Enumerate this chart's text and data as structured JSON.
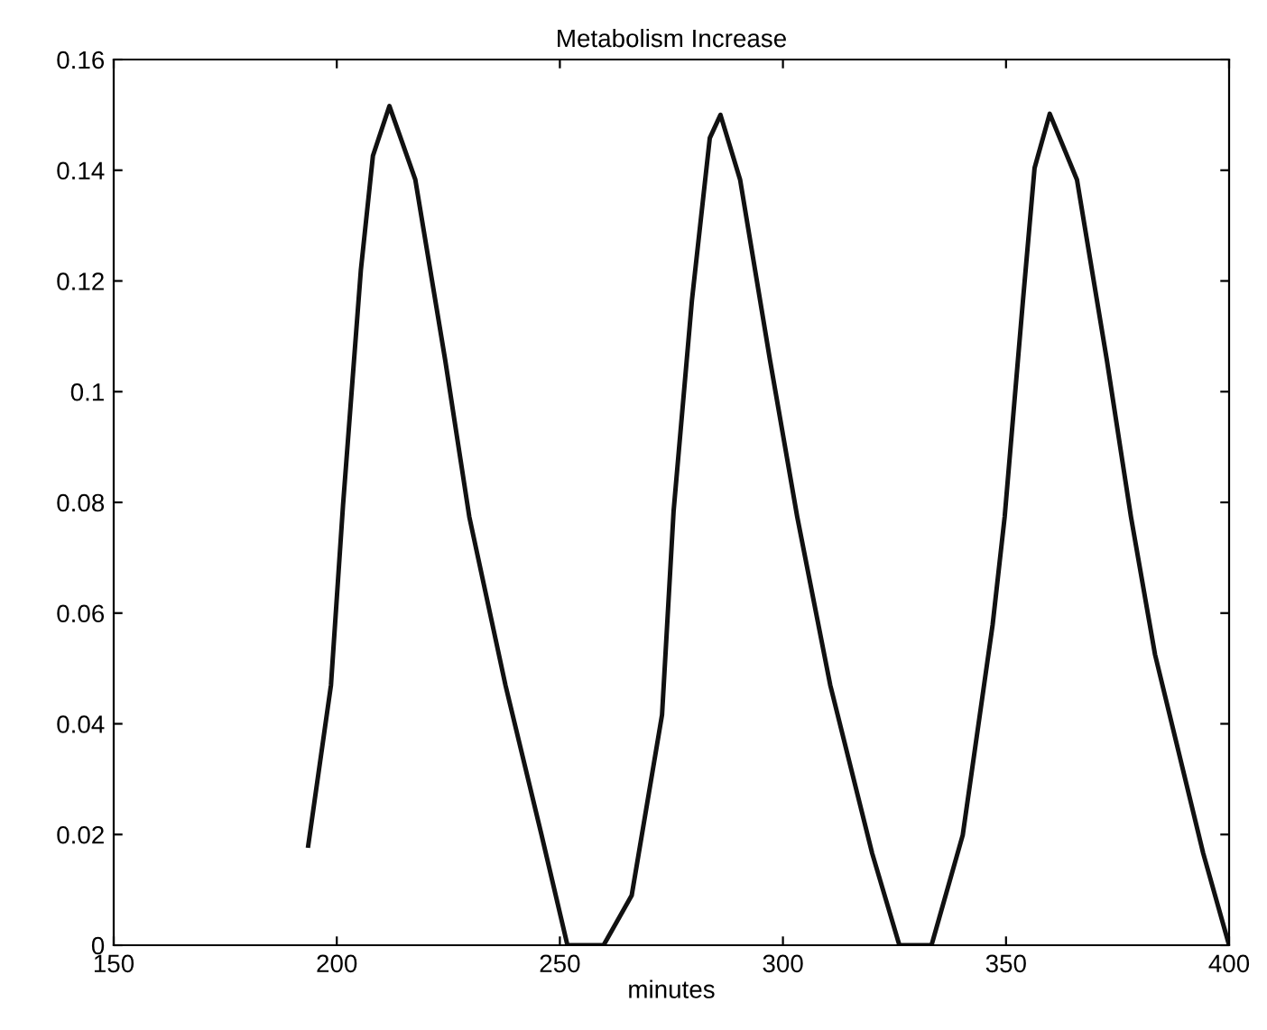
{
  "chart_data": {
    "type": "line",
    "title": "Metabolism Increase",
    "xlabel": "minutes",
    "series": [
      {
        "color": "#111111",
        "x": [
          193.6,
          198.7,
          201.4,
          205.4,
          208.1,
          211.8,
          217.6,
          224.3,
          229.7,
          237.8,
          245.9,
          251.7,
          259.8,
          266.1,
          272.9,
          275.5,
          279.6,
          283.6,
          286,
          290.4,
          297.1,
          303.2,
          310.6,
          320,
          326.1,
          333.3,
          340.3,
          347.0,
          349.7,
          353.8,
          356.4,
          359.8,
          365.9,
          372.6,
          378.0,
          383.4,
          394.2,
          400
        ],
        "values": [
          0.018,
          0.047,
          0.0795,
          0.122,
          0.1426,
          0.1516,
          0.1383,
          0.1057,
          0.0774,
          0.047,
          0.0199,
          0,
          0,
          0.009,
          0.0416,
          0.0785,
          0.1165,
          0.1458,
          0.15,
          0.1383,
          0.1057,
          0.0774,
          0.047,
          0.0166,
          0,
          0,
          0.0199,
          0.0579,
          0.0774,
          0.1165,
          0.1404,
          0.1502,
          0.1383,
          0.1057,
          0.0774,
          0.0525,
          0.0166,
          0
        ]
      }
    ],
    "xlim": [
      150,
      400
    ],
    "xticks": [
      150,
      200,
      250,
      300,
      350,
      400
    ],
    "ylim": [
      0,
      0.16
    ],
    "yticks": [
      0,
      0.02,
      0.04,
      0.06,
      0.08,
      0.1,
      0.12,
      0.14,
      0.16
    ],
    "grid": false,
    "legend": false,
    "marker": "none",
    "line_style": "solid"
  }
}
